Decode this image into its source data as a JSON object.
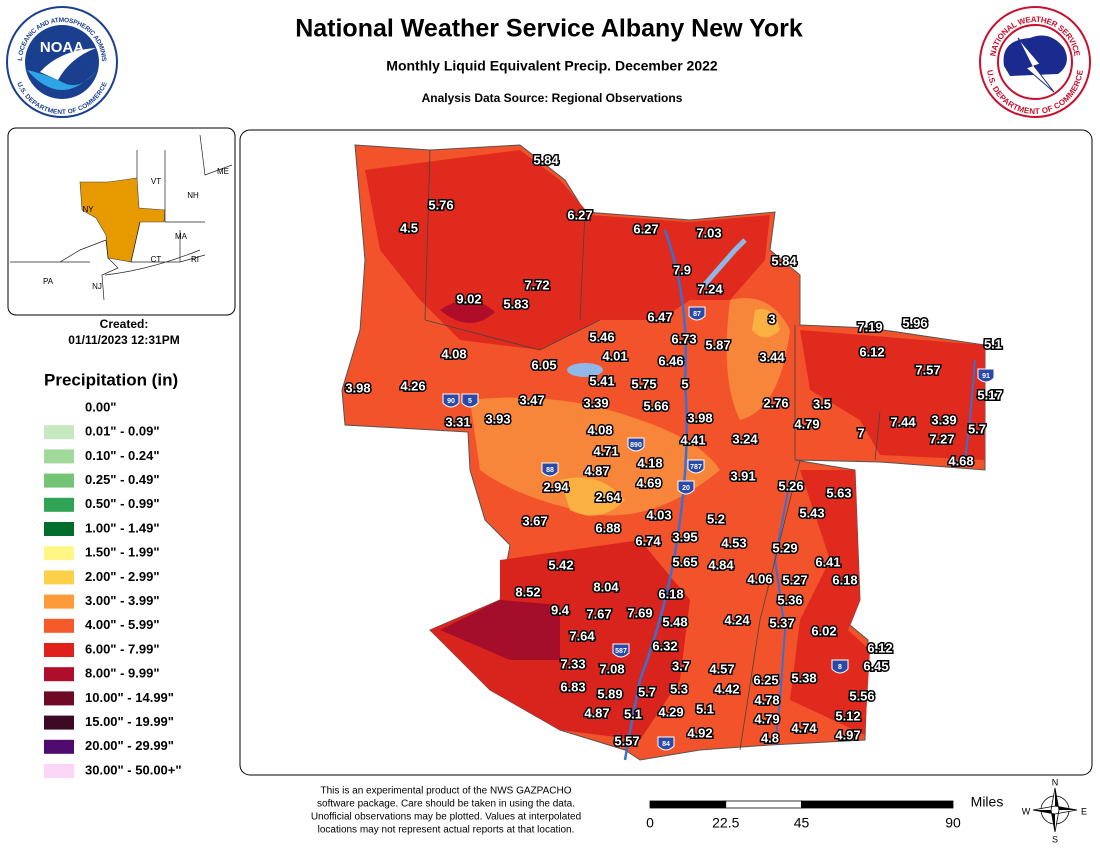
{
  "header": {
    "title": "National Weather Service Albany New York",
    "subtitle": "Monthly Liquid Equivalent Precip. December 2022",
    "source": "Analysis Data Source: Regional Observations"
  },
  "logos": {
    "noaa": {
      "text": "NOAA",
      "rim_top": "NATIONAL OCEANIC AND ATMOSPHERIC ADMINISTRATION",
      "rim_bottom": "U.S. DEPARTMENT OF COMMERCE"
    },
    "nws": {
      "rim_top": "NATIONAL WEATHER SERVICE",
      "rim_bottom": "U.S. DEPARTMENT OF COMMERCE"
    }
  },
  "inset_map": {
    "labels": [
      "ME",
      "VT",
      "NH",
      "NY",
      "MA",
      "CT",
      "RI",
      "PA",
      "NJ"
    ],
    "highlight_color": "#e69a00"
  },
  "created": {
    "label": "Created:",
    "timestamp": "01/11/2023 12:31PM"
  },
  "legend": {
    "title": "Precipitation (in)",
    "entries": [
      {
        "label": "0.00\"",
        "color": "#ffffff"
      },
      {
        "label": "0.01\" - 0.09\"",
        "color": "#c7e9c0"
      },
      {
        "label": "0.10\" - 0.24\"",
        "color": "#a1d99b"
      },
      {
        "label": "0.25\" - 0.49\"",
        "color": "#74c476"
      },
      {
        "label": "0.50\" - 0.99\"",
        "color": "#31a354"
      },
      {
        "label": "1.00\" - 1.49\"",
        "color": "#006d2c"
      },
      {
        "label": "1.50\" - 1.99\"",
        "color": "#fff685"
      },
      {
        "label": "2.00\" - 2.99\"",
        "color": "#fdd049"
      },
      {
        "label": "3.00\" - 3.99\"",
        "color": "#fd9a3a"
      },
      {
        "label": "4.00\" - 5.99\"",
        "color": "#f65a2b"
      },
      {
        "label": "6.00\" - 7.99\"",
        "color": "#e0201b"
      },
      {
        "label": "8.00\" - 9.99\"",
        "color": "#b00d2b"
      },
      {
        "label": "10.00\" - 14.99\"",
        "color": "#6e0a25"
      },
      {
        "label": "15.00\" - 19.99\"",
        "color": "#3c0a25"
      },
      {
        "label": "20.00\" - 29.99\"",
        "color": "#4f0a6e"
      },
      {
        "label": "30.00\" - 50.00+\"",
        "color": "#fcd6f7"
      }
    ]
  },
  "stations": [
    5.84,
    5.76,
    6.27,
    4.5,
    6.27,
    7.03,
    5.84,
    7.9,
    7.72,
    7.24,
    9.02,
    5.83,
    3,
    6.47,
    7.19,
    5.96,
    6.73,
    5.46,
    5.87,
    6.12,
    5.1,
    3.44,
    4.08,
    4.01,
    6.46,
    6.05,
    5.41,
    5.75,
    5,
    7.57,
    3.98,
    4.26,
    5.17,
    3.47,
    3.39,
    5.66,
    2.76,
    3.5,
    3.31,
    3.93,
    3.98,
    7.44,
    3.39,
    4.79,
    5.7,
    7,
    7.27,
    4.08,
    4.41,
    3.24,
    4.71,
    4.68,
    4.18,
    4.87,
    3.91,
    4.69,
    2.94,
    5.26,
    5.63,
    2.64,
    4.03,
    5.2,
    5.43,
    3.67,
    6.88,
    6.74,
    3.95,
    4.53,
    5.29,
    6.41,
    5.42,
    5.65,
    4.84,
    4.06,
    5.27,
    6.18,
    8.04,
    6.18,
    8.52,
    5.36,
    9.4,
    7.67,
    7.69,
    5.48,
    4.24,
    5.37,
    6.02,
    7.64,
    6.32,
    6.12,
    6.45,
    7.33,
    7.08,
    3.7,
    4.57,
    5.38,
    6.25,
    6.83,
    5.89,
    5.7,
    5.3,
    4.42,
    5.56,
    4.78,
    4.87,
    5.1,
    4.29,
    5.1,
    5.12,
    4.79,
    4.74,
    5.57,
    4.92,
    4.8,
    4.97
  ],
  "highways": [
    "90",
    "5",
    "87",
    "91",
    "890",
    "88",
    "787",
    "20",
    "587",
    "84",
    "8"
  ],
  "disclaimer": [
    "This is an experimental product of the NWS GAZPACHO",
    "software package. Care should be taken in using the data.",
    "Unofficial observations may be plotted. Values at interpolated",
    "locations may not represent actual reports at that location."
  ],
  "scale": {
    "unit": "Miles",
    "ticks": [
      0,
      22.5,
      45,
      90
    ]
  },
  "compass": [
    "N",
    "E",
    "S",
    "W"
  ]
}
